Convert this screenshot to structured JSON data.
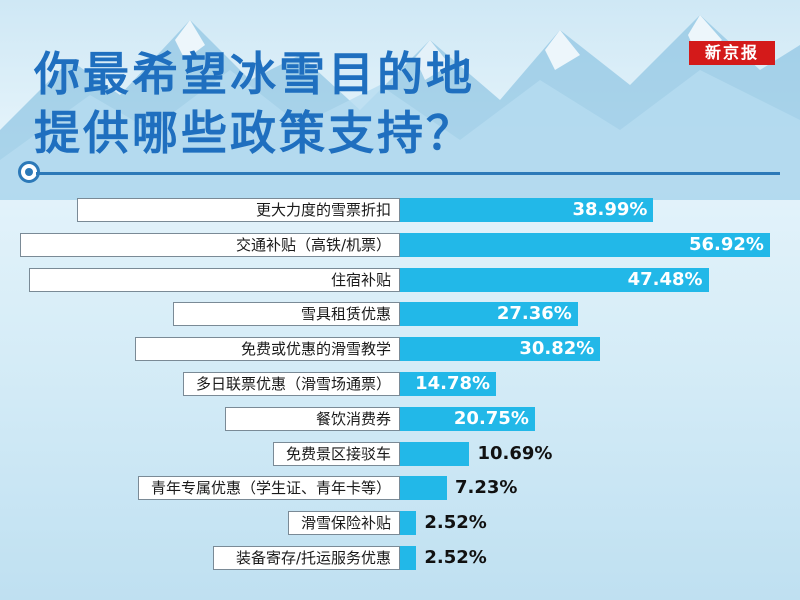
{
  "title_line1": "你最希望冰雪目的地",
  "title_line2": "提供哪些政策支持？",
  "brand": "新京报",
  "colors": {
    "bar": "#22b8e8",
    "title": "#1f6fbf",
    "brand": "#d41a1a"
  },
  "chart_data": {
    "type": "bar",
    "orientation": "horizontal",
    "unit": "%",
    "categories": [
      "更大力度的雪票折扣",
      "交通补贴（高铁/机票）",
      "住宿补贴",
      "雪具租赁优惠",
      "免费或优惠的滑雪教学",
      "多日联票优惠（滑雪场通票）",
      "餐饮消费券",
      "免费景区接驳车",
      "青年专属优惠（学生证、青年卡等）",
      "滑雪保险补贴",
      "装备寄存/托运服务优惠"
    ],
    "values": [
      38.99,
      56.92,
      47.48,
      27.36,
      30.82,
      14.78,
      20.75,
      10.69,
      7.23,
      2.52,
      2.52
    ],
    "value_labels": [
      "38.99%",
      "56.92%",
      "47.48%",
      "27.36%",
      "30.82%",
      "14.78%",
      "20.75%",
      "10.69%",
      "7.23%",
      "2.52%",
      "2.52%"
    ],
    "xlim": [
      0,
      60
    ],
    "grid": false,
    "legend": "none"
  }
}
